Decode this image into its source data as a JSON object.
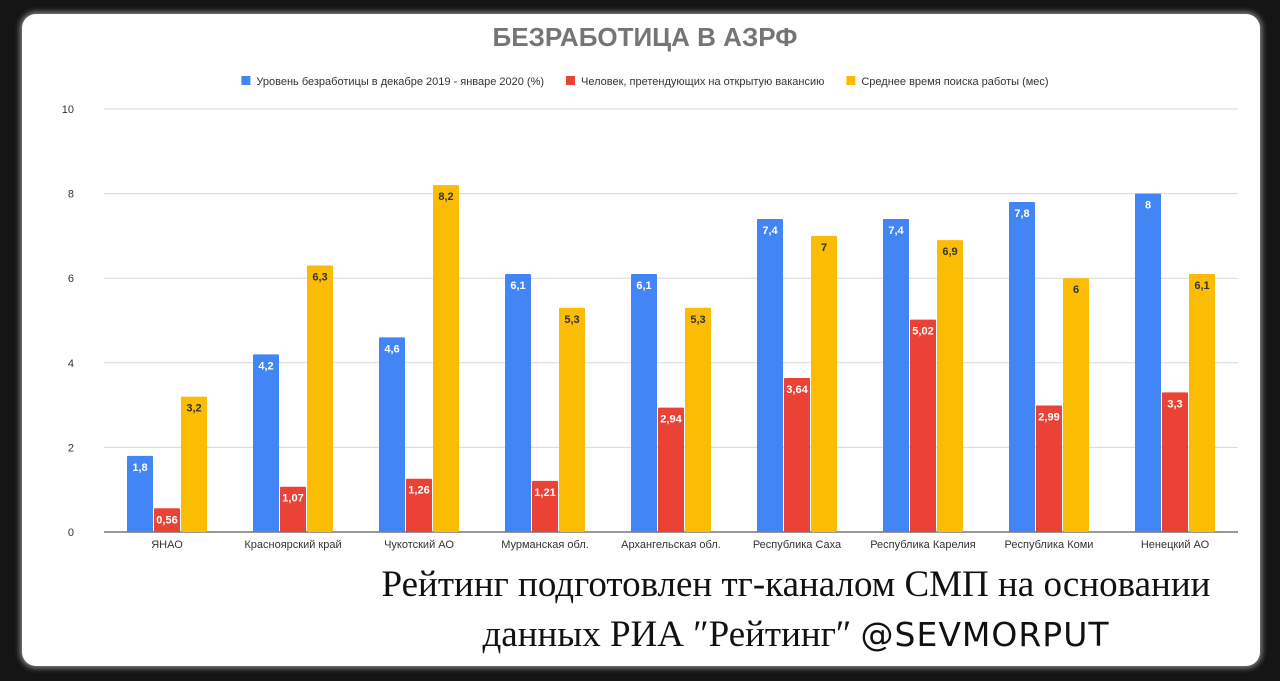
{
  "chart_data": {
    "type": "bar",
    "title": "БЕЗРАБОТИЦА В АЗРФ",
    "categories": [
      "ЯНАО",
      "Красноярский край",
      "Чукотский АО",
      "Мурманская обл.",
      "Архангельская обл.",
      "Республика Саха",
      "Республика Карелия",
      "Республика Коми",
      "Ненецкий АО"
    ],
    "series": [
      {
        "name": "Уровень безработицы в декабре 2019 - январе 2020 (%)",
        "color": "#4285f4",
        "values": [
          1.8,
          4.2,
          4.6,
          6.1,
          6.1,
          7.4,
          7.4,
          7.8,
          8
        ],
        "labels": [
          "1,8",
          "4,2",
          "4,6",
          "6,1",
          "6,1",
          "7,4",
          "7,4",
          "7,8",
          "8"
        ]
      },
      {
        "name": "Человек, претендующих на открытую вакансию",
        "color": "#ea4335",
        "values": [
          0.56,
          1.07,
          1.26,
          1.21,
          2.94,
          3.64,
          5.02,
          2.99,
          3.3
        ],
        "labels": [
          "0,56",
          "1,07",
          "1,26",
          "1,21",
          "2,94",
          "3,64",
          "5,02",
          "2,99",
          "3,3"
        ]
      },
      {
        "name": "Среднее время поиска работы (мес)",
        "color": "#fbbc04",
        "values": [
          3.2,
          6.3,
          8.2,
          5.3,
          5.3,
          7,
          6.9,
          6,
          6.1
        ],
        "labels": [
          "3,2",
          "6,3",
          "8,2",
          "5,3",
          "5,3",
          "7",
          "6,9",
          "6",
          "6,1"
        ]
      }
    ],
    "ylim": [
      0,
      10
    ],
    "yticks": [
      0,
      2,
      4,
      6,
      8,
      10
    ],
    "grid": true,
    "legend": "top"
  },
  "credit": {
    "line1": "Рейтинг подготовлен тг-каналом СМП на основании",
    "line2": "данных РИА ″Рейтинг″",
    "handle": "@SEVMORPUT"
  }
}
